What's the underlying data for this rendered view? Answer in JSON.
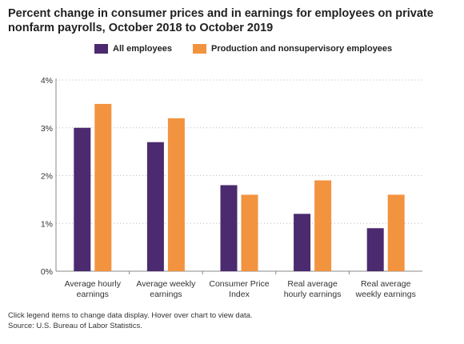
{
  "title": "Percent change in consumer prices and in earnings for employees on private nonfarm payrolls, October 2018 to October 2019",
  "notes": {
    "instruction": "Click legend items to change data display. Hover over chart to view data.",
    "source": "Source: U.S. Bureau of Labor Statistics."
  },
  "colors": {
    "all": "#4b2a6f",
    "prod": "#f29340",
    "grid": "#bbbbbb",
    "axis": "#888888"
  },
  "chart_data": {
    "type": "bar",
    "title": "Percent change in consumer prices and in earnings for employees on private nonfarm payrolls, October 2018 to October 2019",
    "categories": [
      [
        "Average hourly",
        "earnings"
      ],
      [
        "Average weekly",
        "earnings"
      ],
      [
        "Consumer Price",
        "Index"
      ],
      [
        "Real average",
        "hourly earnings"
      ],
      [
        "Real average",
        "weekly earnings"
      ]
    ],
    "series": [
      {
        "name": "All employees",
        "values": [
          3.0,
          2.7,
          1.8,
          1.2,
          0.9
        ]
      },
      {
        "name": "Production and nonsupervisory employees",
        "values": [
          3.5,
          3.2,
          1.6,
          1.9,
          1.6
        ]
      }
    ],
    "yticks": [
      "0%",
      "1%",
      "2%",
      "3%",
      "4%"
    ],
    "ylim": [
      0,
      4
    ],
    "grid": true,
    "legend_position": "top"
  }
}
